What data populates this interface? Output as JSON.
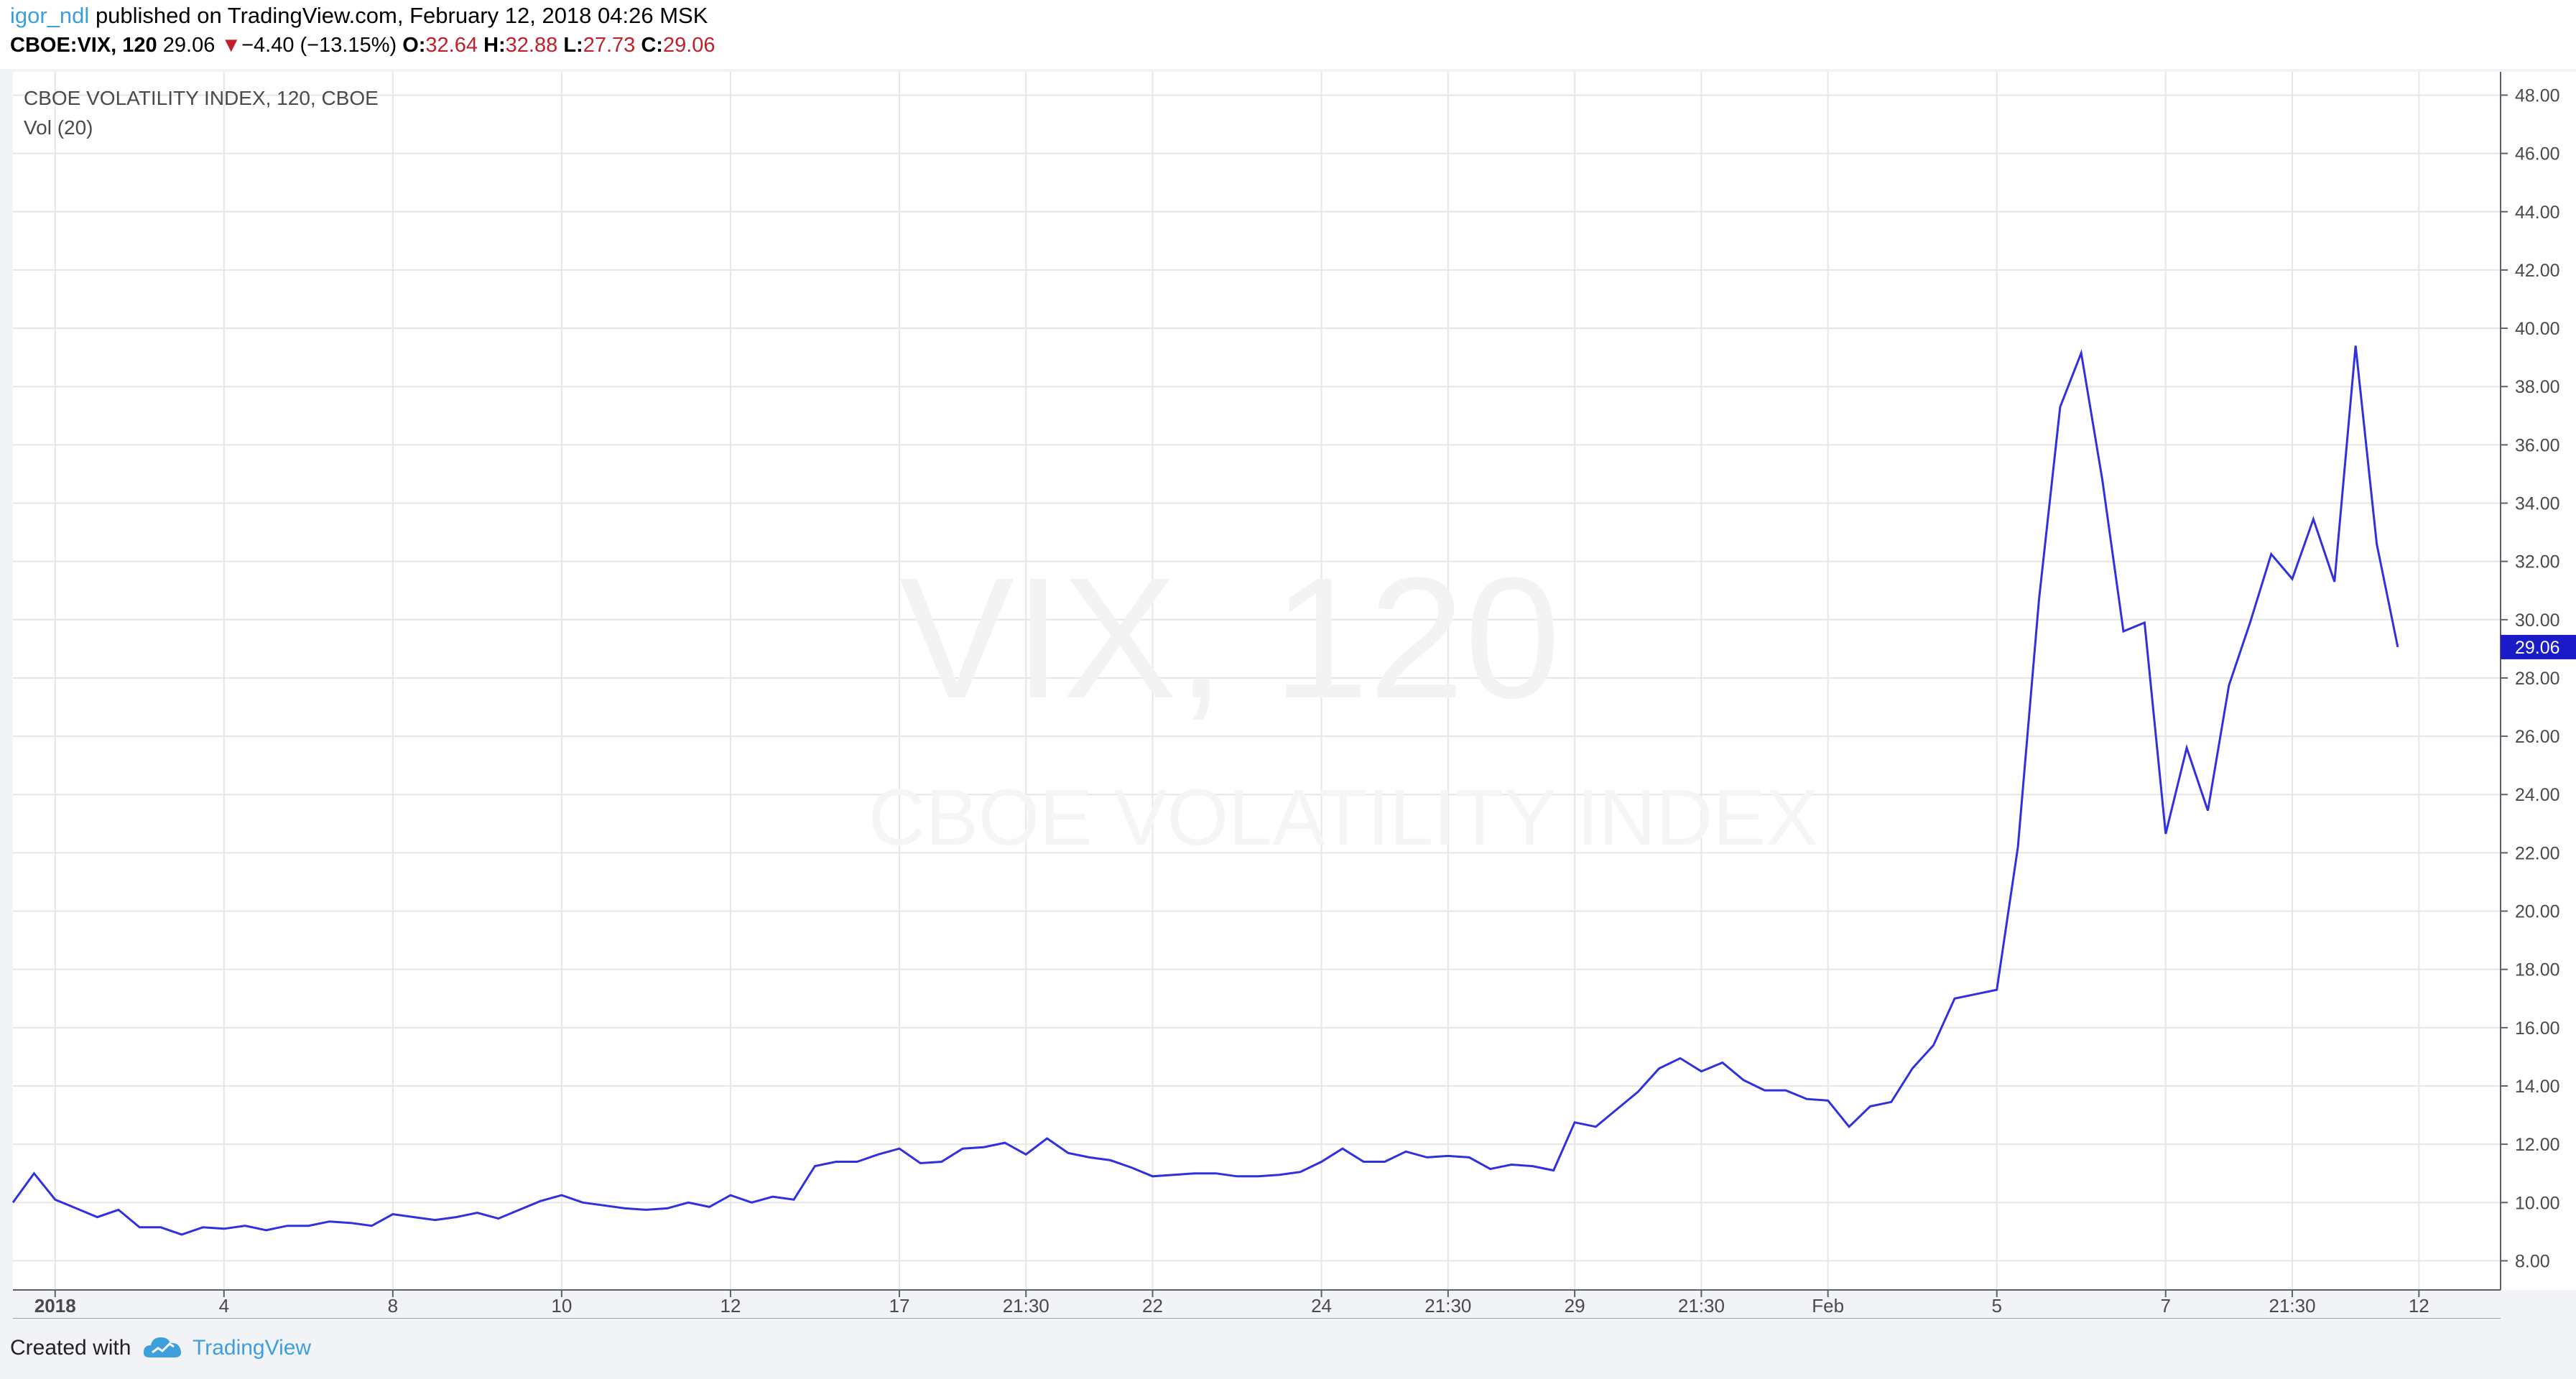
{
  "header": {
    "author": "igor_ndl",
    "published_text": "published on TradingView.com, February 12, 2018 04:26 MSK",
    "symbol": "CBOE:VIX, 120",
    "last": "29.06",
    "change_arrow": "▼",
    "change": "−4.40 (−13.15%)",
    "open_label": "O:",
    "open": "32.64",
    "high_label": "H:",
    "high": "32.88",
    "low_label": "L:",
    "low": "27.73",
    "close_label": "C:",
    "close": "29.06"
  },
  "legend": {
    "title": "CBOE VOLATILITY INDEX, 120, CBOE",
    "indicator": "Vol (20)"
  },
  "watermark": {
    "symbol": "VIX, 120",
    "name": "CBOE VOLATILITY INDEX"
  },
  "footer": {
    "created_with": "Created with",
    "brand": "TradingView"
  },
  "colors": {
    "line": "#3030e0",
    "price_label_bg": "#1a1ac8",
    "accent": "#3d9fdc",
    "down": "#c0202a"
  },
  "chart_data": {
    "type": "line",
    "series": [
      {
        "values": [
          10.0,
          11.0,
          10.1,
          9.8,
          9.5,
          9.75,
          9.15,
          9.15,
          8.9,
          9.15,
          9.1,
          9.2,
          9.05,
          9.2,
          9.2,
          9.35,
          9.3,
          9.2,
          9.6,
          9.5,
          9.4,
          9.5,
          9.65,
          9.45,
          9.75,
          10.05,
          10.25,
          10.0,
          9.9,
          9.8,
          9.75,
          9.8,
          10.0,
          9.85,
          10.25,
          10.0,
          10.2,
          10.1,
          11.25,
          11.4,
          11.4,
          11.65,
          11.85,
          11.35,
          11.4,
          11.85,
          11.9,
          12.05,
          11.65,
          12.2,
          11.7,
          11.55,
          11.45,
          11.2,
          10.9,
          10.95,
          11.0,
          11.0,
          10.9,
          10.9,
          10.95,
          11.05,
          11.4,
          11.85,
          11.4,
          11.4,
          11.75,
          11.55,
          11.6,
          11.55,
          11.15,
          11.3,
          11.25,
          11.1,
          12.75,
          12.6,
          13.2,
          13.8,
          14.6,
          14.95,
          14.5,
          14.8,
          14.2,
          13.85,
          13.85,
          13.55,
          13.5,
          12.6,
          13.3,
          13.45,
          14.6,
          15.4,
          17.0,
          17.15,
          17.3,
          22.2,
          30.7,
          37.3,
          39.15,
          34.8,
          29.6,
          29.9,
          22.65,
          25.6,
          23.45,
          27.75,
          29.9,
          32.25,
          31.4,
          33.45,
          31.3,
          39.4,
          32.6,
          29.06
        ]
      }
    ],
    "ylim": [
      7,
      48.8
    ],
    "y_ticks": [
      "48.00",
      "46.00",
      "44.00",
      "42.00",
      "40.00",
      "38.00",
      "36.00",
      "34.00",
      "32.00",
      "30.00",
      "28.00",
      "26.00",
      "24.00",
      "22.00",
      "20.00",
      "18.00",
      "16.00",
      "14.00",
      "12.00",
      "10.00",
      "8.00"
    ],
    "y_tick_values": [
      48,
      46,
      44,
      42,
      40,
      38,
      36,
      34,
      32,
      30,
      28,
      26,
      24,
      22,
      20,
      18,
      16,
      14,
      12,
      10,
      8
    ],
    "x_ticks": [
      {
        "label": "2018",
        "i": 2
      },
      {
        "label": "4",
        "i": 10
      },
      {
        "label": "8",
        "i": 18
      },
      {
        "label": "10",
        "i": 26
      },
      {
        "label": "12",
        "i": 34
      },
      {
        "label": "17",
        "i": 42
      },
      {
        "label": "21:30",
        "i": 48
      },
      {
        "label": "22",
        "i": 54
      },
      {
        "label": "24",
        "i": 62
      },
      {
        "label": "21:30",
        "i": 68
      },
      {
        "label": "29",
        "i": 74
      },
      {
        "label": "21:30",
        "i": 80
      },
      {
        "label": "Feb",
        "i": 86
      },
      {
        "label": "5",
        "i": 94
      },
      {
        "label": "7",
        "i": 102
      },
      {
        "label": "21:30",
        "i": 108
      },
      {
        "label": "12",
        "i": 114
      }
    ],
    "last_value_label": "29.06",
    "grid": true,
    "title": "CBOE VOLATILITY INDEX, 120, CBOE"
  }
}
